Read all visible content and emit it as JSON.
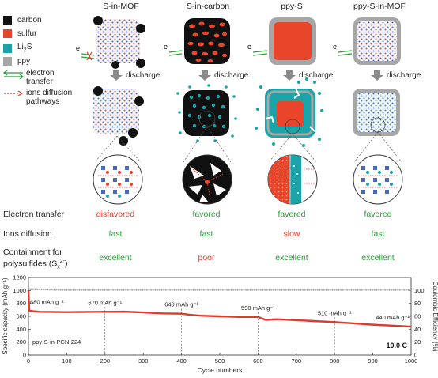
{
  "columns": [
    "S-in-MOF",
    "S-in-carbon",
    "ppy-S",
    "ppy-S-in-MOF"
  ],
  "legend": [
    {
      "label": "carbon",
      "color": "#111111"
    },
    {
      "label": "sulfur",
      "color": "#e8452a"
    },
    {
      "label_main": "Li",
      "label_sub": "2",
      "label_end": "S",
      "color": "#1aa3a8"
    },
    {
      "label": "ppy",
      "color": "#a6a6a6"
    }
  ],
  "legend_lines": {
    "electron": "electron transfer",
    "electron_1": "electron",
    "electron_2": "transfer",
    "ions_1": "ions diffusion",
    "ions_2": "pathways"
  },
  "discharge_label": "discharge",
  "electron_symbol": "e",
  "properties": [
    {
      "label": "Electron transfer",
      "values": [
        "disfavored",
        "favored",
        "favored",
        "favored"
      ],
      "kinds": [
        "bad",
        "good",
        "good",
        "good"
      ]
    },
    {
      "label": "Ions diffusion",
      "values": [
        "fast",
        "fast",
        "slow",
        "fast"
      ],
      "kinds": [
        "good",
        "good",
        "bad",
        "good"
      ]
    },
    {
      "label_1": "Containment for",
      "label_2": "polysulfides (S",
      "label_sub": "x",
      "label_sup": "2-",
      "label_end": ")",
      "values": [
        "excellent",
        "poor",
        "excellent",
        "excellent"
      ],
      "kinds": [
        "good",
        "bad",
        "good",
        "good"
      ]
    }
  ],
  "colors": {
    "carbon": "#111111",
    "sulfur": "#e8452a",
    "li2s": "#1aa3a8",
    "ppy": "#a6a6a6",
    "good": "#2a9a3a",
    "bad": "#e03a2a",
    "line": "#e03a2a",
    "ce": "#9a9a9a"
  },
  "chart_data": {
    "type": "line",
    "title": "",
    "xlabel": "Cycle numbers",
    "ylabel_left": "Specific capacity (mAh g⁻¹)",
    "ylabel_right": "Coulombic Efficiency (%)",
    "xlim": [
      0,
      1000
    ],
    "ylim_left": [
      0,
      1200
    ],
    "ylim_right": [
      0,
      120
    ],
    "xticks": [
      0,
      100,
      200,
      300,
      400,
      500,
      600,
      700,
      800,
      900,
      1000
    ],
    "yticks_left": [
      0,
      200,
      400,
      600,
      800,
      1000,
      1200
    ],
    "yticks_right": [
      0,
      20,
      40,
      60,
      80,
      100
    ],
    "sample_label": "ppy-S-in-PCN-224",
    "rate_label": "10.0 C",
    "series": [
      {
        "axis": "left",
        "x": [
          0,
          2,
          10,
          30,
          100,
          200,
          250,
          300,
          350,
          400,
          420,
          450,
          500,
          550,
          600,
          620,
          650,
          700,
          750,
          800,
          850,
          900,
          950,
          1000
        ],
        "y": [
          1000,
          690,
          680,
          670,
          665,
          670,
          672,
          660,
          645,
          640,
          625,
          610,
          600,
          590,
          590,
          545,
          555,
          540,
          525,
          510,
          490,
          470,
          455,
          440
        ]
      },
      {
        "axis": "right",
        "x": [
          0,
          100,
          200,
          300,
          400,
          500,
          600,
          700,
          800,
          900,
          1000
        ],
        "y": [
          102,
          101,
          101,
          101,
          101,
          101,
          101,
          101,
          101,
          101,
          101
        ]
      }
    ],
    "annotations": [
      {
        "x": 0,
        "y": 680,
        "text": "680 mAh g⁻¹"
      },
      {
        "x": 200,
        "y": 670,
        "text": "670 mAh g⁻¹"
      },
      {
        "x": 400,
        "y": 640,
        "text": "640 mAh g⁻¹"
      },
      {
        "x": 600,
        "y": 590,
        "text": "590 mAh g⁻¹"
      },
      {
        "x": 800,
        "y": 510,
        "text": "510 mAh g⁻¹"
      },
      {
        "x": 1000,
        "y": 440,
        "text": "440 mAh g⁻¹"
      }
    ]
  }
}
